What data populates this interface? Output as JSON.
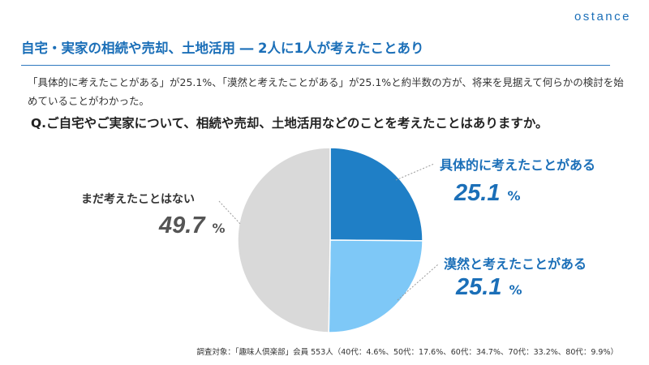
{
  "brand": "ostance",
  "headline": "自宅・実家の相続や売却、土地活用 ― 2人に1人が考えたことあり",
  "summary": "「具体的に考えたことがある」が25.1%、「漠然と考えたことがある」が25.1%と約半数の方が、将来を見据えて何らかの検討を始めていることがわかった。",
  "question": "Q.ご自宅やご実家について、相続や売却、土地活用などのことを考えたことはありますか。",
  "footnote": "調査対象：「趣味人倶楽部」会員 553人（40代：4.6%、50代：17.6%、60代：34.7%、70代：33.2%、80代：9.9%）",
  "colors": {
    "accent": "#1b6fb8",
    "slice_concrete": "#1f7fc6",
    "slice_vague": "#7ec8f7",
    "slice_none": "#d9d9d9"
  },
  "chart_data": {
    "type": "pie",
    "unit": "%",
    "slices": [
      {
        "label": "具体的に考えたことがある",
        "value": 25.1,
        "display": "25.1",
        "color": "#1f7fc6"
      },
      {
        "label": "漠然と考えたことがある",
        "value": 25.1,
        "display": "25.1",
        "color": "#7ec8f7"
      },
      {
        "label": "まだ考えたことはない",
        "value": 49.7,
        "display": "49.7",
        "color": "#d9d9d9"
      }
    ]
  }
}
